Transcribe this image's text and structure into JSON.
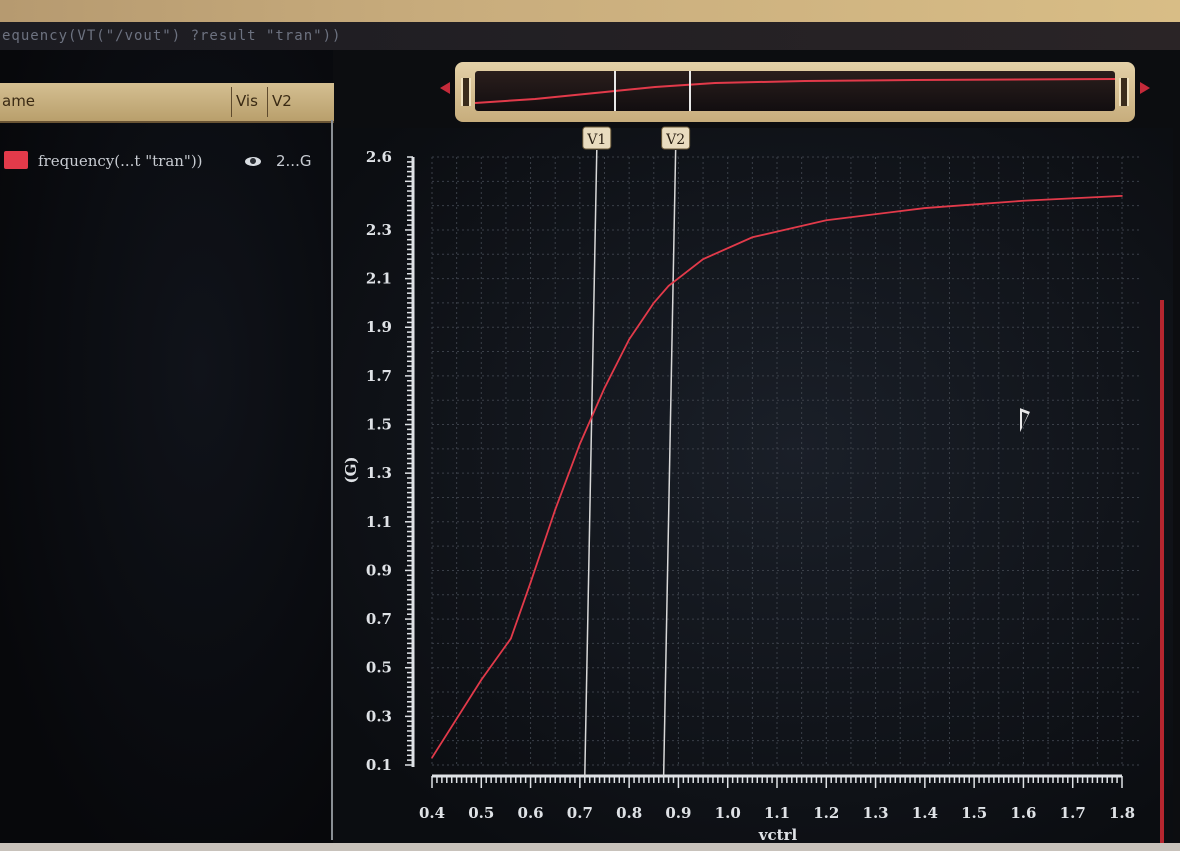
{
  "window": {
    "title": "equency(VT(\"/vout\") ?result \"tran\"))"
  },
  "legend_table": {
    "headers": [
      "ame",
      "Vis",
      "V2"
    ],
    "rows": [
      {
        "name": "frequency(...t \"tran\"))",
        "visible_icon": "eye-icon",
        "v2": "2...G",
        "color": "#e23a4a"
      }
    ]
  },
  "markers": [
    {
      "label": "V1",
      "x": 0.71
    },
    {
      "label": "V2",
      "x": 0.87
    }
  ],
  "colors": {
    "trace": "#e23a4a",
    "marker_line": "#d8d8d8",
    "marker_label_bg": "#e9dcbf",
    "grid": "#3a3f48",
    "axis_text": "#dfe2e6"
  },
  "chart_data": {
    "type": "line",
    "xlabel": "vctrl",
    "ylabel": "(G)",
    "xlim": [
      0.4,
      1.8
    ],
    "ylim": [
      0.1,
      2.6
    ],
    "x_ticks": [
      "0.4",
      "0.5",
      "0.6",
      "0.7",
      "0.8",
      "0.9",
      "1.0",
      "1.1",
      "1.2",
      "1.3",
      "1.4",
      "1.5",
      "1.6",
      "1.7",
      "1.8"
    ],
    "y_ticks": [
      "0.1",
      "0.3",
      "0.5",
      "0.7",
      "0.9",
      "1.1",
      "1.3",
      "1.5",
      "1.7",
      "1.9",
      "2.1",
      "2.3",
      "2.6"
    ],
    "grid": true,
    "series": [
      {
        "name": "frequency(...t \"tran\"))",
        "x": [
          0.4,
          0.5,
          0.56,
          0.6,
          0.65,
          0.7,
          0.75,
          0.8,
          0.85,
          0.88,
          0.95,
          1.05,
          1.2,
          1.4,
          1.6,
          1.8
        ],
        "y": [
          0.13,
          0.45,
          0.62,
          0.85,
          1.15,
          1.42,
          1.65,
          1.85,
          2.0,
          2.07,
          2.18,
          2.27,
          2.34,
          2.39,
          2.42,
          2.44
        ]
      }
    ]
  }
}
